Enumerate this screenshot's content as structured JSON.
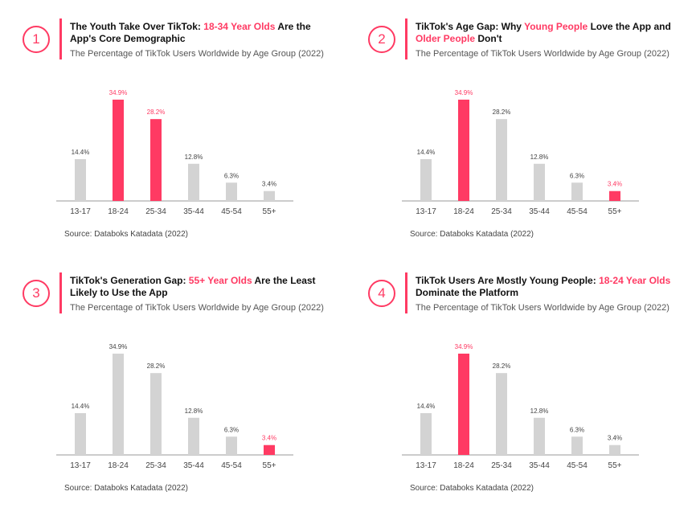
{
  "colors": {
    "accent": "#ff3a63",
    "bar_default": "#d3d3d3",
    "axis": "#9a9a9a"
  },
  "panels": [
    {
      "number": "1",
      "title_parts": [
        {
          "text": "The Youth Take Over TikTok: ",
          "hl": false
        },
        {
          "text": "18-34 Year Olds",
          "hl": true
        },
        {
          "text": " Are the App's Core Demographic",
          "hl": false
        }
      ],
      "subtitle": "The Percentage of TikTok Users Worldwide by Age Group (2022)",
      "source": "Source: Databoks Katadata (2022)",
      "highlight": [
        "18-24",
        "25-34"
      ]
    },
    {
      "number": "2",
      "title_parts": [
        {
          "text": "TikTok's Age Gap: Why ",
          "hl": false
        },
        {
          "text": "Young People",
          "hl": true
        },
        {
          "text": " Love the App and ",
          "hl": false
        },
        {
          "text": "Older People",
          "hl": true
        },
        {
          "text": " Don't",
          "hl": false
        }
      ],
      "subtitle": "The Percentage of TikTok Users Worldwide by Age Group (2022)",
      "source": "Source: Databoks Katadata (2022)",
      "highlight": [
        "18-24",
        "55+"
      ]
    },
    {
      "number": "3",
      "title_parts": [
        {
          "text": "TikTok's Generation Gap: ",
          "hl": false
        },
        {
          "text": "55+ Year Olds",
          "hl": true
        },
        {
          "text": " Are the Least Likely to Use the App",
          "hl": false
        }
      ],
      "subtitle": "The Percentage of TikTok Users Worldwide by Age Group (2022)",
      "source": "Source: Databoks Katadata (2022)",
      "highlight": [
        "55+"
      ]
    },
    {
      "number": "4",
      "title_parts": [
        {
          "text": "TikTok Users Are Mostly Young People: ",
          "hl": false
        },
        {
          "text": "18-24 Year Olds",
          "hl": true
        },
        {
          "text": " Dominate the Platform",
          "hl": false
        }
      ],
      "subtitle": "The Percentage of TikTok Users Worldwide by Age Group (2022)",
      "source": "Source: Databoks Katadata (2022)",
      "highlight": [
        "18-24"
      ]
    }
  ],
  "chart_data": [
    {
      "type": "bar",
      "categories": [
        "13-17",
        "18-24",
        "25-34",
        "35-44",
        "45-54",
        "55+"
      ],
      "values": [
        14.4,
        34.9,
        28.2,
        12.8,
        6.3,
        3.4
      ],
      "data_labels": [
        "14.4%",
        "34.9%",
        "28.2%",
        "12.8%",
        "6.3%",
        "3.4%"
      ],
      "ylim": [
        0,
        36
      ]
    },
    {
      "type": "bar",
      "categories": [
        "13-17",
        "18-24",
        "25-34",
        "35-44",
        "45-54",
        "55+"
      ],
      "values": [
        14.4,
        34.9,
        28.2,
        12.8,
        6.3,
        3.4
      ],
      "data_labels": [
        "14.4%",
        "34.9%",
        "28.2%",
        "12.8%",
        "6.3%",
        "3.4%"
      ],
      "ylim": [
        0,
        36
      ]
    },
    {
      "type": "bar",
      "categories": [
        "13-17",
        "18-24",
        "25-34",
        "35-44",
        "45-54",
        "55+"
      ],
      "values": [
        14.4,
        34.9,
        28.2,
        12.8,
        6.3,
        3.4
      ],
      "data_labels": [
        "14.4%",
        "34.9%",
        "28.2%",
        "12.8%",
        "6.3%",
        "3.4%"
      ],
      "ylim": [
        0,
        36
      ]
    },
    {
      "type": "bar",
      "categories": [
        "13-17",
        "18-24",
        "25-34",
        "35-44",
        "45-54",
        "55+"
      ],
      "values": [
        14.4,
        34.9,
        28.2,
        12.8,
        6.3,
        3.4
      ],
      "data_labels": [
        "14.4%",
        "34.9%",
        "28.2%",
        "12.8%",
        "6.3%",
        "3.4%"
      ],
      "ylim": [
        0,
        36
      ]
    }
  ]
}
